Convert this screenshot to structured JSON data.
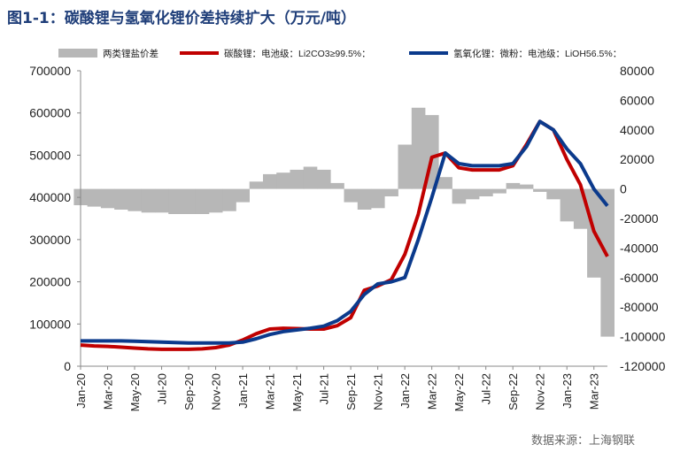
{
  "page": {
    "title": "图1-1：碳酸锂与氢氧化锂价差持续扩大（万元/吨）",
    "source": "数据来源：上海钢联"
  },
  "colors": {
    "spread": "#b7b7b7",
    "carbonate": "#c00000",
    "hydroxide": "#0b3a8c",
    "title": "#1f3e79"
  },
  "chart_data": {
    "type": "line",
    "legend_position": "top",
    "grid": false,
    "title": "",
    "xlabel": "",
    "ylabel": "",
    "y_left_ticks": [
      "700000",
      "600000",
      "500000",
      "400000",
      "300000",
      "200000",
      "100000",
      "0"
    ],
    "y_right_ticks": [
      "80000",
      "60000",
      "40000",
      "20000",
      "0",
      "-20000",
      "-40000",
      "-60000",
      "-80000",
      "-100000",
      "-120000"
    ],
    "x_tick_labels": [
      "Jan-20",
      "Mar-20",
      "May-20",
      "Jul-20",
      "Sep-20",
      "Nov-20",
      "Jan-21",
      "Mar-21",
      "May-21",
      "Jul-21",
      "Sep-21",
      "Nov-21",
      "Jan-22",
      "Mar-22",
      "May-22",
      "Jul-22",
      "Sep-22",
      "Nov-22",
      "Jan-23",
      "Mar-23"
    ],
    "ylim_left": [
      0,
      700000
    ],
    "ylim_right": [
      -120000,
      80000
    ],
    "x_months": [
      "2020-01",
      "2020-02",
      "2020-03",
      "2020-04",
      "2020-05",
      "2020-06",
      "2020-07",
      "2020-08",
      "2020-09",
      "2020-10",
      "2020-11",
      "2020-12",
      "2021-01",
      "2021-02",
      "2021-03",
      "2021-04",
      "2021-05",
      "2021-06",
      "2021-07",
      "2021-08",
      "2021-09",
      "2021-10",
      "2021-11",
      "2021-12",
      "2022-01",
      "2022-02",
      "2022-03",
      "2022-04",
      "2022-05",
      "2022-06",
      "2022-07",
      "2022-08",
      "2022-09",
      "2022-10",
      "2022-11",
      "2022-12",
      "2023-01",
      "2023-02",
      "2023-03",
      "2023-04"
    ],
    "series": [
      {
        "name": "两类锂盐价差",
        "type": "area",
        "axis": "right",
        "values": [
          -11000,
          -12000,
          -13000,
          -14000,
          -15000,
          -16000,
          -16000,
          -17000,
          -17000,
          -17000,
          -16000,
          -15000,
          -9000,
          5000,
          10000,
          11000,
          13000,
          15000,
          13000,
          4000,
          -9000,
          -14000,
          -13000,
          -5000,
          30000,
          55000,
          50000,
          8000,
          -10000,
          -7000,
          -5000,
          -3000,
          4000,
          3000,
          -2000,
          -7000,
          -22000,
          -27000,
          -60000,
          -100000
        ]
      },
      {
        "name": "碳酸锂：电池级：Li2CO3≥99.5%：",
        "type": "line",
        "axis": "left",
        "values": [
          50000,
          48000,
          47000,
          45000,
          43000,
          41000,
          40000,
          40000,
          40000,
          41000,
          44000,
          50000,
          62000,
          77000,
          88000,
          90000,
          89000,
          88000,
          88000,
          96000,
          115000,
          180000,
          190000,
          205000,
          265000,
          360000,
          495000,
          505000,
          470000,
          465000,
          465000,
          465000,
          475000,
          525000,
          580000,
          560000,
          490000,
          430000,
          320000,
          260000
        ]
      },
      {
        "name": "氢氧化锂：微粉：电池级：LiOH56.5%：",
        "type": "line",
        "axis": "left",
        "values": [
          60000,
          60000,
          60000,
          60000,
          59000,
          58000,
          57000,
          56000,
          55000,
          55000,
          55000,
          55000,
          57000,
          65000,
          75000,
          82000,
          86000,
          90000,
          95000,
          108000,
          130000,
          170000,
          195000,
          200000,
          210000,
          300000,
          400000,
          505000,
          480000,
          475000,
          475000,
          475000,
          480000,
          520000,
          580000,
          560000,
          515000,
          480000,
          420000,
          380000
        ]
      }
    ]
  }
}
